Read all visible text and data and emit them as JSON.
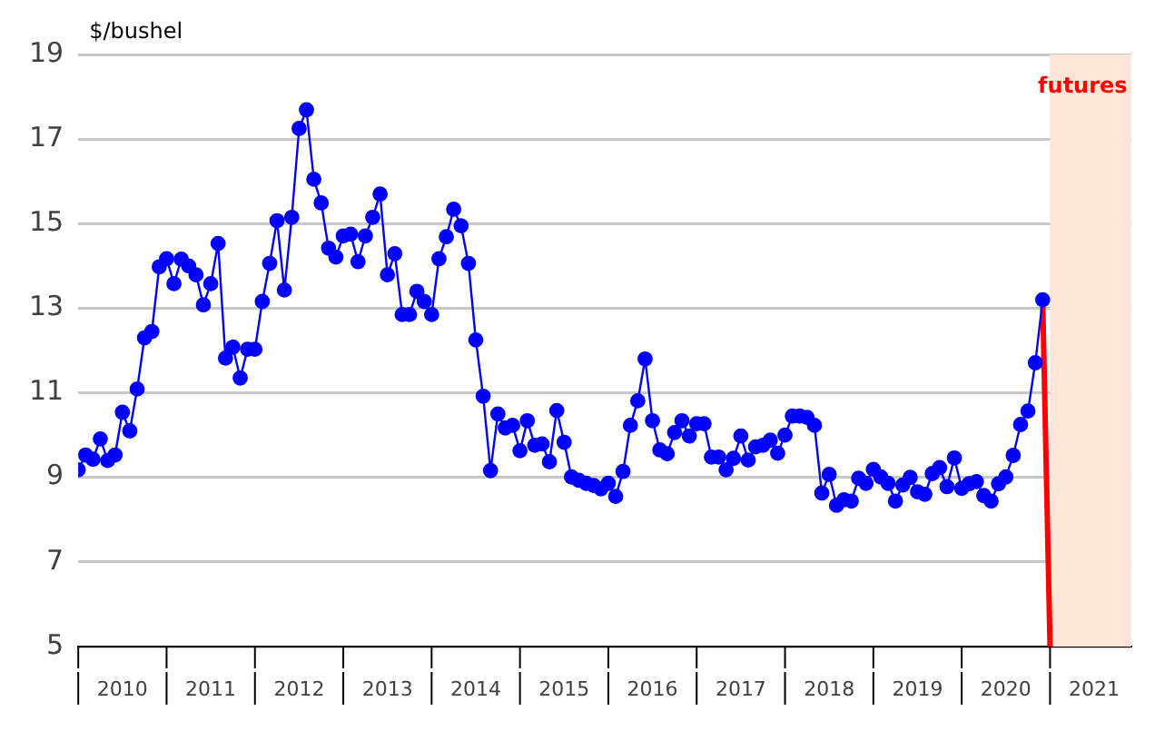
{
  "chart_data": {
    "type": "line",
    "ylabel": "$/bushel",
    "x": [
      "2010-01",
      "2010-02",
      "2010-03",
      "2010-04",
      "2010-05",
      "2010-06",
      "2010-07",
      "2010-08",
      "2010-09",
      "2010-10",
      "2010-11",
      "2010-12",
      "2011-01",
      "2011-02",
      "2011-03",
      "2011-04",
      "2011-05",
      "2011-06",
      "2011-07",
      "2011-08",
      "2011-09",
      "2011-10",
      "2011-11",
      "2011-12",
      "2012-01",
      "2012-02",
      "2012-03",
      "2012-04",
      "2012-05",
      "2012-06",
      "2012-07",
      "2012-08",
      "2012-09",
      "2012-10",
      "2012-11",
      "2012-12",
      "2013-01",
      "2013-02",
      "2013-03",
      "2013-04",
      "2013-05",
      "2013-06",
      "2013-07",
      "2013-08",
      "2013-09",
      "2013-10",
      "2013-11",
      "2013-12",
      "2014-01",
      "2014-02",
      "2014-03",
      "2014-04",
      "2014-05",
      "2014-06",
      "2014-07",
      "2014-08",
      "2014-09",
      "2014-10",
      "2014-11",
      "2014-12",
      "2015-01",
      "2015-02",
      "2015-03",
      "2015-04",
      "2015-05",
      "2015-06",
      "2015-07",
      "2015-08",
      "2015-09",
      "2015-10",
      "2015-11",
      "2015-12",
      "2016-01",
      "2016-02",
      "2016-03",
      "2016-04",
      "2016-05",
      "2016-06",
      "2016-07",
      "2016-08",
      "2016-09",
      "2016-10",
      "2016-11",
      "2016-12",
      "2017-01",
      "2017-02",
      "2017-03",
      "2017-04",
      "2017-05",
      "2017-06",
      "2017-07",
      "2017-08",
      "2017-09",
      "2017-10",
      "2017-11",
      "2017-12",
      "2018-01",
      "2018-02",
      "2018-03",
      "2018-04",
      "2018-05",
      "2018-06",
      "2018-07",
      "2018-08",
      "2018-09",
      "2018-10",
      "2018-11",
      "2018-12",
      "2019-01",
      "2019-02",
      "2019-03",
      "2019-04",
      "2019-05",
      "2019-06",
      "2019-07",
      "2019-08",
      "2019-09",
      "2019-10",
      "2019-11",
      "2019-12",
      "2020-01",
      "2020-02",
      "2020-03",
      "2020-04",
      "2020-05",
      "2020-06",
      "2020-07",
      "2020-08",
      "2020-09",
      "2020-10",
      "2020-11",
      "2020-12"
    ],
    "series": [
      {
        "color": "#0000ff",
        "marker": "circle",
        "values": [
          9.18,
          9.53,
          9.43,
          9.91,
          9.4,
          9.53,
          10.54,
          10.1,
          11.09,
          12.3,
          12.45,
          13.98,
          14.17,
          13.58,
          14.16,
          14.0,
          13.79,
          13.08,
          13.58,
          14.53,
          11.82,
          12.08,
          11.35,
          12.03,
          12.03,
          13.16,
          14.06,
          15.07,
          13.43,
          15.15,
          17.25,
          17.69,
          16.05,
          15.49,
          14.42,
          14.21,
          14.71,
          14.75,
          14.1,
          14.71,
          15.15,
          15.7,
          13.79,
          14.29,
          12.85,
          12.85,
          13.4,
          13.16,
          12.85,
          14.17,
          14.69,
          15.34,
          14.95,
          14.06,
          12.25,
          10.92,
          9.16,
          10.5,
          10.17,
          10.23,
          9.63,
          10.34,
          9.76,
          9.79,
          9.37,
          10.58,
          9.83,
          9.01,
          8.93,
          8.86,
          8.81,
          8.73,
          8.86,
          8.55,
          9.14,
          10.23,
          10.81,
          11.8,
          10.34,
          9.65,
          9.56,
          10.06,
          10.34,
          9.98,
          10.27,
          10.27,
          9.48,
          9.48,
          9.18,
          9.45,
          9.98,
          9.41,
          9.72,
          9.76,
          9.88,
          9.57,
          10.0,
          10.45,
          10.45,
          10.42,
          10.23,
          8.63,
          9.07,
          8.34,
          8.47,
          8.44,
          8.98,
          8.86,
          9.19,
          9.01,
          8.86,
          8.44,
          8.82,
          9.0,
          8.66,
          8.6,
          9.09,
          9.23,
          8.78,
          9.46,
          8.74,
          8.85,
          8.9,
          8.57,
          8.44,
          8.85,
          9.01,
          9.52,
          10.25,
          10.57,
          11.71,
          13.2
        ]
      },
      {
        "color": "#ff0000",
        "marker": "none",
        "x": [
          "2020-12",
          "2021-01"
        ],
        "values": [
          13.2,
          5
        ]
      }
    ],
    "xlim": [
      "2010-01",
      "2021-12"
    ],
    "xticks": [
      {
        "value": "2010-01",
        "label": null
      },
      {
        "value": "2010-07",
        "label": "2010"
      },
      {
        "value": "2011-01",
        "label": null
      },
      {
        "value": "2011-07",
        "label": "2011"
      },
      {
        "value": "2012-01",
        "label": null
      },
      {
        "value": "2012-07",
        "label": "2012"
      },
      {
        "value": "2013-01",
        "label": null
      },
      {
        "value": "2013-07",
        "label": "2013"
      },
      {
        "value": "2014-01",
        "label": null
      },
      {
        "value": "2014-07",
        "label": "2014"
      },
      {
        "value": "2015-01",
        "label": null
      },
      {
        "value": "2015-07",
        "label": "2015"
      },
      {
        "value": "2016-01",
        "label": null
      },
      {
        "value": "2016-07",
        "label": "2016"
      },
      {
        "value": "2017-01",
        "label": null
      },
      {
        "value": "2017-07",
        "label": "2017"
      },
      {
        "value": "2018-01",
        "label": null
      },
      {
        "value": "2018-07",
        "label": "2018"
      },
      {
        "value": "2019-01",
        "label": null
      },
      {
        "value": "2019-07",
        "label": "2019"
      },
      {
        "value": "2020-01",
        "label": null
      },
      {
        "value": "2020-07",
        "label": "2020"
      },
      {
        "value": "2021-01",
        "label": null
      },
      {
        "value": "2021-07",
        "label": "2021"
      }
    ],
    "ylim": [
      5,
      19
    ],
    "yticks": [
      5,
      7,
      9,
      11,
      13,
      15,
      17,
      19
    ],
    "grid": "y",
    "legend": false,
    "bands": [
      {
        "axis": "x",
        "from": "2021-01",
        "to": "2021-12",
        "label": "futures",
        "color": "#fce4d6"
      }
    ]
  }
}
